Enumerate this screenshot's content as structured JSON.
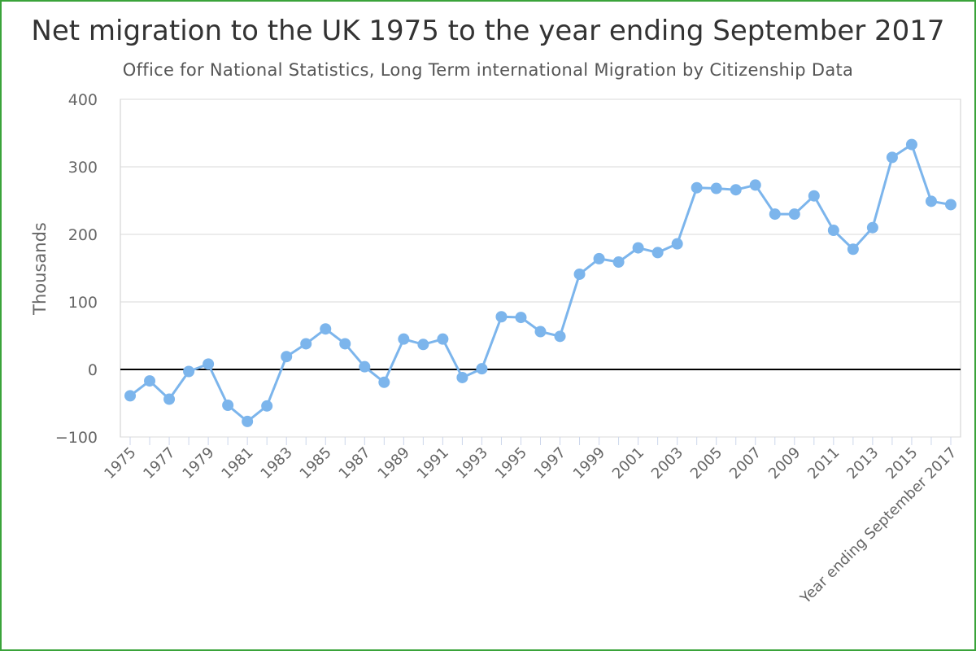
{
  "chart_data": {
    "type": "line",
    "title": "Net migration to the UK 1975 to the year ending September 2017",
    "subtitle": "Office for National Statistics, Long Term international Migration by Citizenship Data",
    "xlabel": "",
    "ylabel": "Thousands",
    "ylim": [
      -100,
      400
    ],
    "yticks": [
      400,
      300,
      200,
      100,
      0,
      -100
    ],
    "ytick_labels": [
      "400",
      "300",
      "200",
      "100",
      "0",
      "−100"
    ],
    "grid": true,
    "legend": "none",
    "colors": {
      "series": "#7cb5ec",
      "zero_line": "#000000",
      "frame": "#3aa33a"
    },
    "categories": [
      "1975",
      "1976",
      "1977",
      "1978",
      "1979",
      "1980",
      "1981",
      "1982",
      "1983",
      "1984",
      "1985",
      "1986",
      "1987",
      "1988",
      "1989",
      "1990",
      "1991",
      "1992",
      "1993",
      "1994",
      "1995",
      "1996",
      "1997",
      "1998",
      "1999",
      "2000",
      "2001",
      "2002",
      "2003",
      "2004",
      "2005",
      "2006",
      "2007",
      "2008",
      "2009",
      "2010",
      "2011",
      "2012",
      "2013",
      "2014",
      "2015",
      "2016",
      "Year ending September 2017"
    ],
    "x_tick_labels": [
      "1975",
      "1977",
      "1979",
      "1981",
      "1983",
      "1985",
      "1987",
      "1989",
      "1991",
      "1993",
      "1995",
      "1997",
      "1999",
      "2001",
      "2003",
      "2005",
      "2007",
      "2009",
      "2011",
      "2013",
      "2015",
      "Year ending September 2017"
    ],
    "series": [
      {
        "values": [
          -39,
          -17,
          -44,
          -3,
          8,
          -53,
          -77,
          -54,
          19,
          38,
          60,
          38,
          4,
          -19,
          45,
          37,
          45,
          -12,
          1,
          78,
          77,
          56,
          49,
          141,
          164,
          159,
          180,
          173,
          186,
          269,
          268,
          266,
          273,
          230,
          230,
          257,
          206,
          178,
          210,
          314,
          333,
          249,
          244
        ]
      }
    ]
  }
}
